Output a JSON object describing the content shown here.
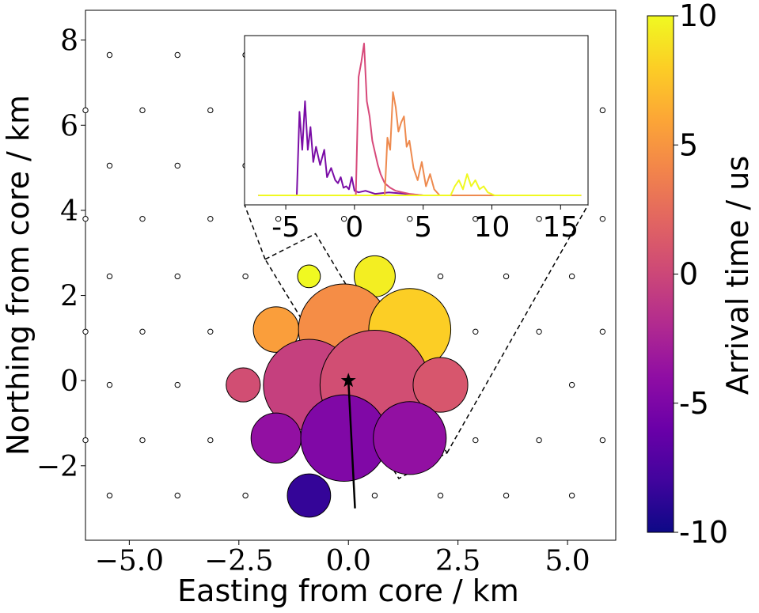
{
  "chart_data": [
    {
      "type": "scatter",
      "title": "",
      "xlabel": "Easting from core / km",
      "ylabel": "Northing from core / km",
      "xlim": [
        -6.0,
        6.1
      ],
      "ylim": [
        -3.75,
        8.7
      ],
      "xticks": [
        -5.0,
        -2.5,
        0.0,
        2.5,
        5.0
      ],
      "xtick_labels": [
        "−5.0",
        "−2.5",
        "0.0",
        "2.5",
        "5.0"
      ],
      "yticks": [
        -2,
        0,
        2,
        4,
        6,
        8
      ],
      "ytick_labels": [
        "−2",
        "0",
        "2",
        "4",
        "6",
        "8"
      ],
      "grid": false,
      "empty_stations": [
        [
          -5.45,
          7.65
        ],
        [
          -3.9,
          7.65
        ],
        [
          -2.35,
          7.65
        ],
        [
          -6.0,
          6.35
        ],
        [
          -4.7,
          6.35
        ],
        [
          -3.15,
          6.35
        ],
        [
          5.8,
          6.35
        ],
        [
          -5.45,
          5.05
        ],
        [
          -3.9,
          5.05
        ],
        [
          -2.35,
          5.05
        ],
        [
          -6.0,
          3.8
        ],
        [
          -4.7,
          3.8
        ],
        [
          -3.15,
          3.8
        ],
        [
          -1.6,
          3.8
        ],
        [
          -0.1,
          3.8
        ],
        [
          1.4,
          3.8
        ],
        [
          2.9,
          3.8
        ],
        [
          4.35,
          3.8
        ],
        [
          5.8,
          3.8
        ],
        [
          -5.45,
          2.45
        ],
        [
          -3.9,
          2.45
        ],
        [
          -2.35,
          2.45
        ],
        [
          2.1,
          2.45
        ],
        [
          3.6,
          2.45
        ],
        [
          5.1,
          2.45
        ],
        [
          -6.0,
          1.15
        ],
        [
          -4.7,
          1.15
        ],
        [
          -3.15,
          1.15
        ],
        [
          2.9,
          1.15
        ],
        [
          4.35,
          1.15
        ],
        [
          5.8,
          1.15
        ],
        [
          -5.45,
          -0.1
        ],
        [
          -3.9,
          -0.1
        ],
        [
          5.1,
          -0.1
        ],
        [
          -6.0,
          -1.4
        ],
        [
          -4.7,
          -1.4
        ],
        [
          -3.15,
          -1.4
        ],
        [
          2.9,
          -1.4
        ],
        [
          4.35,
          -1.4
        ],
        [
          5.8,
          -1.4
        ],
        [
          -5.45,
          -2.7
        ],
        [
          -3.9,
          -2.7
        ],
        [
          -2.35,
          -2.7
        ],
        [
          0.6,
          -2.7
        ],
        [
          2.1,
          -2.7
        ],
        [
          3.6,
          -2.7
        ],
        [
          5.1,
          -2.7
        ]
      ],
      "stations": [
        {
          "x": -0.9,
          "y": 2.45,
          "size": 0.5,
          "time": 10.0
        },
        {
          "x": 0.6,
          "y": 2.45,
          "size": 0.9,
          "time": 9.5
        },
        {
          "x": -1.65,
          "y": 1.2,
          "size": 1.0,
          "time": 5.5
        },
        {
          "x": -0.1,
          "y": 1.2,
          "size": 2.0,
          "time": 4.5
        },
        {
          "x": 1.4,
          "y": 1.2,
          "size": 1.8,
          "time": 8.0
        },
        {
          "x": -2.4,
          "y": -0.1,
          "size": 0.75,
          "time": 0.5
        },
        {
          "x": -0.9,
          "y": -0.1,
          "size": 2.0,
          "time": -0.5
        },
        {
          "x": 0.6,
          "y": -0.1,
          "size": 2.4,
          "time": 0.5
        },
        {
          "x": 2.1,
          "y": -0.1,
          "size": 1.2,
          "time": 1.0
        },
        {
          "x": -1.65,
          "y": -1.35,
          "size": 1.1,
          "time": -3.8
        },
        {
          "x": -0.1,
          "y": -1.35,
          "size": 1.9,
          "time": -4.8
        },
        {
          "x": 1.4,
          "y": -1.35,
          "size": 1.6,
          "time": -3.8
        },
        {
          "x": -0.9,
          "y": -2.7,
          "size": 0.95,
          "time": -8.5
        }
      ],
      "core": {
        "x": 0.0,
        "y": 0.0
      },
      "shower_axis": {
        "from": [
          0.0,
          0.0
        ],
        "to": [
          0.15,
          -3.0
        ]
      },
      "selection_box": [
        [
          -1.9,
          2.85
        ],
        [
          -0.75,
          3.45
        ],
        [
          2.25,
          -1.7
        ],
        [
          1.15,
          -2.3
        ]
      ]
    },
    {
      "type": "line",
      "title": "",
      "xlabel": "",
      "ylabel": "",
      "xlim": [
        -8,
        17
      ],
      "ylim": [
        -0.05,
        1.0
      ],
      "xticks": [
        -5,
        0,
        5,
        10,
        15
      ],
      "xtick_labels": [
        "-5",
        "0",
        "5",
        "10",
        "15"
      ],
      "series": [
        {
          "color": "#7a0da6",
          "x": [
            -7,
            -4.2,
            -4,
            -3.8,
            -3.6,
            -3.4,
            -3.2,
            -3.0,
            -2.8,
            -2.5,
            -2.2,
            -2.0,
            -1.7,
            -1.4,
            -1.2,
            -1.0,
            -0.8,
            -0.6,
            -0.4,
            -0.2,
            0.0,
            0.3,
            0.8,
            1.5,
            2.5,
            5,
            16.5
          ],
          "y": [
            0.0,
            0.0,
            0.55,
            0.3,
            0.62,
            0.3,
            0.45,
            0.22,
            0.32,
            0.2,
            0.3,
            0.12,
            0.18,
            0.1,
            0.08,
            0.12,
            0.05,
            0.06,
            0.04,
            0.12,
            0.03,
            0.02,
            0.03,
            0.01,
            0.02,
            0.0,
            0.0
          ]
        },
        {
          "color": "#d7497a",
          "x": [
            -7,
            0.1,
            0.3,
            0.5,
            0.7,
            0.9,
            1.1,
            1.3,
            1.5,
            1.7,
            1.9,
            2.2,
            2.6,
            3.0,
            3.5,
            4.0,
            5.0,
            16.5
          ],
          "y": [
            0.0,
            0.0,
            0.78,
            0.88,
            1.0,
            0.62,
            0.52,
            0.36,
            0.28,
            0.2,
            0.14,
            0.08,
            0.05,
            0.03,
            0.02,
            0.01,
            0.0,
            0.0
          ]
        },
        {
          "color": "#ee8a4e",
          "x": [
            -7,
            2.2,
            2.4,
            2.6,
            2.8,
            3.0,
            3.2,
            3.4,
            3.6,
            3.8,
            4.0,
            4.3,
            4.6,
            4.9,
            5.2,
            5.5,
            5.8,
            6.2,
            16.5
          ],
          "y": [
            0.0,
            0.0,
            0.38,
            0.3,
            0.68,
            0.58,
            0.42,
            0.48,
            0.52,
            0.32,
            0.36,
            0.18,
            0.1,
            0.22,
            0.06,
            0.14,
            0.04,
            0.0,
            0.0
          ]
        },
        {
          "color": "#f0f921",
          "x": [
            -7,
            7.0,
            7.3,
            7.6,
            7.9,
            8.2,
            8.5,
            8.8,
            9.1,
            9.4,
            9.7,
            10.2,
            16.5
          ],
          "y": [
            0.0,
            0.0,
            0.06,
            0.1,
            0.04,
            0.14,
            0.06,
            0.1,
            0.04,
            0.06,
            0.02,
            0.0,
            0.0
          ]
        }
      ]
    },
    {
      "type": "colorbar",
      "label": "Arrival time / us",
      "range": [
        -10,
        10
      ],
      "ticks": [
        10,
        5,
        0,
        -5,
        -10
      ],
      "tick_labels": [
        "10",
        "5",
        "0",
        "-5",
        "-10"
      ],
      "colormap": [
        "#0d0887",
        "#41049d",
        "#6a00a8",
        "#8f0da4",
        "#b12a90",
        "#cc4778",
        "#e16462",
        "#f2844b",
        "#fca636",
        "#fcce25",
        "#f0f921"
      ]
    }
  ]
}
